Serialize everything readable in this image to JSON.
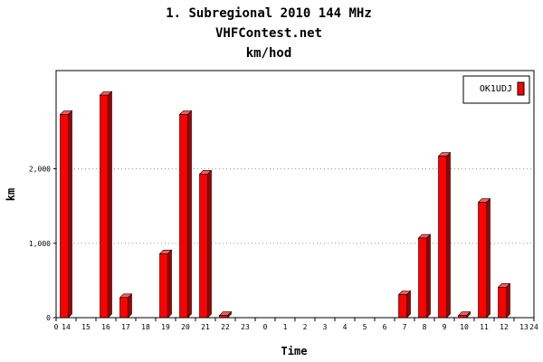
{
  "chart_data": {
    "type": "bar",
    "title": "1. Subregional 2010 144 MHz",
    "subtitle": "VHFContest.net",
    "unit_label": "km/hod",
    "xlabel": "Time",
    "ylabel": "km",
    "x_axis_start": "0",
    "x_axis_end": "24",
    "categories": [
      "14",
      "15",
      "16",
      "17",
      "18",
      "19",
      "20",
      "21",
      "22",
      "23",
      "0",
      "1",
      "2",
      "3",
      "4",
      "5",
      "6",
      "7",
      "8",
      "9",
      "10",
      "11",
      "12",
      "13"
    ],
    "series": [
      {
        "name": "OK1UDJ",
        "color": "#ff0000",
        "values": [
          2730,
          0,
          2990,
          270,
          0,
          860,
          2730,
          1930,
          30,
          0,
          0,
          0,
          0,
          0,
          0,
          0,
          0,
          310,
          1070,
          2170,
          30,
          1550,
          410,
          0
        ]
      }
    ],
    "ylim": [
      0,
      3320
    ],
    "yticks": [
      {
        "value": 0,
        "label": "0"
      },
      {
        "value": 1000,
        "label": "1,000"
      },
      {
        "value": 2000,
        "label": "2,000"
      }
    ],
    "grid": "horizontal-dotted",
    "legend_position": "top-right"
  }
}
